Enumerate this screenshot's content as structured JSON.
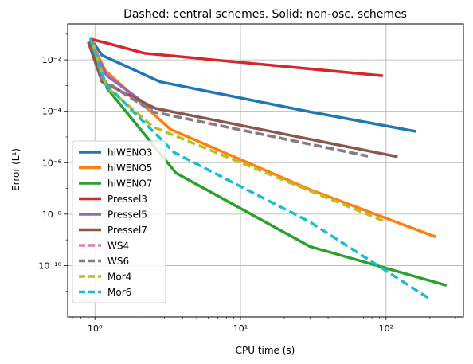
{
  "chart_data": {
    "type": "line",
    "title": "Dashed: central schemes. Solid: non-osc. schemes",
    "xlabel": "CPU time (s)",
    "ylabel": "Error (L¹)",
    "xscale": "log",
    "yscale": "log",
    "xlim": [
      0.65,
      340
    ],
    "ylim": [
      1e-12,
      0.25
    ],
    "grid": true,
    "legend_position": "lower-left",
    "x_ticks": [
      {
        "value": 1,
        "label": "10⁰"
      },
      {
        "value": 10,
        "label": "10¹"
      },
      {
        "value": 100,
        "label": "10²"
      }
    ],
    "y_ticks": [
      {
        "value": 1e-10,
        "label": "10⁻¹⁰"
      },
      {
        "value": 1e-08,
        "label": "10⁻⁸"
      },
      {
        "value": 1e-06,
        "label": "10⁻⁶"
      },
      {
        "value": 0.0001,
        "label": "10⁻⁴"
      },
      {
        "value": 0.01,
        "label": "10⁻²"
      }
    ],
    "series": [
      {
        "name": "hiWENO3",
        "color": "#1f77b4",
        "dash": "solid",
        "points": [
          [
            0.93,
            0.07
          ],
          [
            1.12,
            0.015
          ],
          [
            2.8,
            0.0014
          ],
          [
            30,
            9.5e-05
          ],
          [
            160,
            1.65e-05
          ]
        ]
      },
      {
        "name": "hiWENO5",
        "color": "#ff7f0e",
        "dash": "solid",
        "points": [
          [
            0.93,
            0.06
          ],
          [
            1.18,
            0.0038
          ],
          [
            3.3,
            2e-05
          ],
          [
            30,
            9e-08
          ],
          [
            220,
            1.3e-09
          ]
        ]
      },
      {
        "name": "hiWENO7",
        "color": "#2ca02c",
        "dash": "solid",
        "points": [
          [
            0.93,
            0.05
          ],
          [
            1.22,
            0.00075
          ],
          [
            3.6,
            4e-07
          ],
          [
            30,
            5.5e-10
          ],
          [
            260,
            1.7e-11
          ]
        ]
      },
      {
        "name": "Pressel3",
        "color": "#d62728",
        "dash": "solid",
        "points": [
          [
            0.93,
            0.065
          ],
          [
            1.2,
            0.045
          ],
          [
            2.2,
            0.018
          ],
          [
            95,
            0.0024
          ]
        ]
      },
      {
        "name": "Pressel5",
        "color": "#9467bd",
        "dash": "solid",
        "points": [
          [
            0.93,
            0.05
          ],
          [
            1.2,
            0.0025
          ],
          [
            2.5,
            0.00012
          ]
        ]
      },
      {
        "name": "Pressel7",
        "color": "#8c564b",
        "dash": "solid",
        "points": [
          [
            0.9,
            0.05
          ],
          [
            1.12,
            0.0014
          ],
          [
            2.6,
            0.00013
          ],
          [
            120,
            1.7e-06
          ]
        ]
      },
      {
        "name": "WS4",
        "color": "#e377c2",
        "dash": "dashed",
        "points": [
          [
            0.97,
            0.05
          ],
          [
            1.12,
            0.0018
          ],
          [
            2.5,
            9.5e-05
          ],
          [
            75,
            1.8e-06
          ]
        ]
      },
      {
        "name": "WS6",
        "color": "#7f7f7f",
        "dash": "dashed",
        "points": [
          [
            0.97,
            0.045
          ],
          [
            1.12,
            0.0017
          ],
          [
            2.5,
            9.5e-05
          ],
          [
            75,
            1.8e-06
          ]
        ]
      },
      {
        "name": "Mor4",
        "color": "#bcbd22",
        "dash": "dashed",
        "points": [
          [
            0.97,
            0.04
          ],
          [
            1.2,
            0.0009
          ],
          [
            2.5,
            2.5e-05
          ],
          [
            100,
            5e-09
          ]
        ]
      },
      {
        "name": "Mor6",
        "color": "#17becf",
        "dash": "dashed",
        "points": [
          [
            0.93,
            0.07
          ],
          [
            1.18,
            0.0012
          ],
          [
            3.5,
            2.5e-06
          ],
          [
            30,
            5e-09
          ],
          [
            200,
            5e-12
          ]
        ]
      }
    ]
  }
}
